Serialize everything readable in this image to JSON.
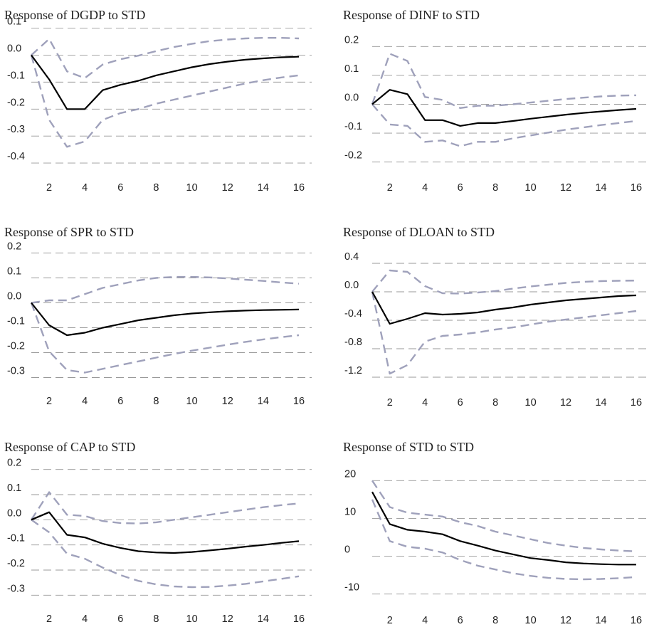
{
  "chart_data": [
    {
      "type": "line",
      "title": "Response of DGDP to STD",
      "xlabel": "",
      "ylabel": "",
      "x": [
        1,
        2,
        3,
        4,
        5,
        6,
        7,
        8,
        9,
        10,
        11,
        12,
        13,
        14,
        15,
        16
      ],
      "xticks": [
        "2",
        "4",
        "6",
        "8",
        "10",
        "12",
        "14",
        "16"
      ],
      "yticks": [
        "0.1",
        "0.0",
        "-0.1",
        "-0.2",
        "-0.3",
        "-0.4"
      ],
      "ylim": [
        -0.45,
        0.12
      ],
      "grid": true,
      "series": [
        {
          "role": "response",
          "values": [
            0.0,
            -0.09,
            -0.2,
            -0.2,
            -0.13,
            -0.11,
            -0.095,
            -0.075,
            -0.06,
            -0.045,
            -0.033,
            -0.024,
            -0.017,
            -0.012,
            -0.008,
            -0.006
          ]
        },
        {
          "role": "upper band",
          "values": [
            0.0,
            0.06,
            -0.06,
            -0.085,
            -0.035,
            -0.015,
            -0.002,
            0.015,
            0.03,
            0.042,
            0.052,
            0.058,
            0.062,
            0.064,
            0.064,
            0.062
          ]
        },
        {
          "role": "lower band",
          "values": [
            0.0,
            -0.24,
            -0.34,
            -0.32,
            -0.24,
            -0.215,
            -0.2,
            -0.18,
            -0.165,
            -0.15,
            -0.135,
            -0.12,
            -0.105,
            -0.093,
            -0.083,
            -0.075
          ]
        }
      ],
      "colors": {
        "response": "#000000",
        "band": "#9fa1bb"
      }
    },
    {
      "type": "line",
      "title": "Response of DINF to STD",
      "xlabel": "",
      "ylabel": "",
      "x": [
        1,
        2,
        3,
        4,
        5,
        6,
        7,
        8,
        9,
        10,
        11,
        12,
        13,
        14,
        15,
        16
      ],
      "xticks": [
        "2",
        "4",
        "6",
        "8",
        "10",
        "12",
        "14",
        "16"
      ],
      "yticks": [
        "0.2",
        "0.1",
        "0.0",
        "-0.1",
        "-0.2"
      ],
      "ylim": [
        -0.25,
        0.25
      ],
      "grid": true,
      "series": [
        {
          "role": "response",
          "values": [
            0.0,
            0.05,
            0.035,
            -0.055,
            -0.055,
            -0.075,
            -0.065,
            -0.065,
            -0.058,
            -0.05,
            -0.043,
            -0.036,
            -0.03,
            -0.025,
            -0.02,
            -0.016
          ]
        },
        {
          "role": "upper band",
          "values": [
            0.0,
            0.175,
            0.15,
            0.025,
            0.015,
            -0.013,
            -0.005,
            -0.005,
            0.0,
            0.006,
            0.012,
            0.018,
            0.023,
            0.027,
            0.03,
            0.031
          ]
        },
        {
          "role": "lower band",
          "values": [
            0.0,
            -0.07,
            -0.075,
            -0.13,
            -0.125,
            -0.145,
            -0.13,
            -0.13,
            -0.118,
            -0.108,
            -0.098,
            -0.088,
            -0.08,
            -0.072,
            -0.065,
            -0.058
          ]
        }
      ],
      "colors": {
        "response": "#000000",
        "band": "#9fa1bb"
      }
    },
    {
      "type": "line",
      "title": "Response of SPR to STD",
      "xlabel": "",
      "ylabel": "",
      "x": [
        1,
        2,
        3,
        4,
        5,
        6,
        7,
        8,
        9,
        10,
        11,
        12,
        13,
        14,
        15,
        16
      ],
      "xticks": [
        "2",
        "4",
        "6",
        "8",
        "10",
        "12",
        "14",
        "16"
      ],
      "yticks": [
        "0.2",
        "0.1",
        "0.0",
        "-0.1",
        "-0.2",
        "-0.3"
      ],
      "ylim": [
        -0.35,
        0.25
      ],
      "grid": true,
      "series": [
        {
          "role": "response",
          "values": [
            0.0,
            -0.09,
            -0.13,
            -0.12,
            -0.1,
            -0.085,
            -0.07,
            -0.06,
            -0.05,
            -0.043,
            -0.038,
            -0.034,
            -0.031,
            -0.029,
            -0.028,
            -0.027
          ]
        },
        {
          "role": "upper band",
          "values": [
            0.0,
            0.01,
            0.01,
            0.035,
            0.06,
            0.075,
            0.09,
            0.1,
            0.104,
            0.104,
            0.102,
            0.098,
            0.093,
            0.088,
            0.082,
            0.077
          ]
        },
        {
          "role": "lower band",
          "values": [
            0.0,
            -0.195,
            -0.27,
            -0.28,
            -0.265,
            -0.25,
            -0.235,
            -0.22,
            -0.205,
            -0.192,
            -0.18,
            -0.168,
            -0.157,
            -0.147,
            -0.138,
            -0.13
          ]
        }
      ],
      "colors": {
        "response": "#000000",
        "band": "#9fa1bb"
      }
    },
    {
      "type": "line",
      "title": "Response of DLOAN to STD",
      "xlabel": "",
      "ylabel": "",
      "x": [
        1,
        2,
        3,
        4,
        5,
        6,
        7,
        8,
        9,
        10,
        11,
        12,
        13,
        14,
        15,
        16
      ],
      "xticks": [
        "2",
        "4",
        "6",
        "8",
        "10",
        "12",
        "14",
        "16"
      ],
      "yticks": [
        "0.4",
        "0.0",
        "-0.4",
        "-0.8",
        "-1.2"
      ],
      "ylim": [
        -1.4,
        0.6
      ],
      "grid": true,
      "series": [
        {
          "role": "response",
          "values": [
            0.0,
            -0.45,
            -0.38,
            -0.3,
            -0.32,
            -0.31,
            -0.29,
            -0.25,
            -0.22,
            -0.18,
            -0.15,
            -0.12,
            -0.1,
            -0.08,
            -0.06,
            -0.05
          ]
        },
        {
          "role": "upper band",
          "values": [
            0.0,
            0.3,
            0.28,
            0.08,
            -0.02,
            -0.025,
            -0.01,
            0.01,
            0.045,
            0.075,
            0.1,
            0.125,
            0.14,
            0.15,
            0.155,
            0.158
          ]
        },
        {
          "role": "lower band",
          "values": [
            0.0,
            -1.15,
            -1.03,
            -0.7,
            -0.62,
            -0.6,
            -0.57,
            -0.53,
            -0.5,
            -0.46,
            -0.42,
            -0.39,
            -0.36,
            -0.33,
            -0.3,
            -0.27
          ]
        }
      ],
      "colors": {
        "response": "#000000",
        "band": "#9fa1bb"
      }
    },
    {
      "type": "line",
      "title": "Response of CAP to STD",
      "xlabel": "",
      "ylabel": "",
      "x": [
        1,
        2,
        3,
        4,
        5,
        6,
        7,
        8,
        9,
        10,
        11,
        12,
        13,
        14,
        15,
        16
      ],
      "xticks": [
        "2",
        "4",
        "6",
        "8",
        "10",
        "12",
        "14",
        "16"
      ],
      "yticks": [
        "0.2",
        "0.1",
        "0.0",
        "-0.1",
        "-0.2",
        "-0.3"
      ],
      "ylim": [
        -0.35,
        0.25
      ],
      "grid": true,
      "series": [
        {
          "role": "response",
          "values": [
            0.0,
            0.03,
            -0.06,
            -0.07,
            -0.095,
            -0.112,
            -0.125,
            -0.13,
            -0.132,
            -0.128,
            -0.122,
            -0.115,
            -0.107,
            -0.1,
            -0.092,
            -0.085
          ]
        },
        {
          "role": "upper band",
          "values": [
            0.0,
            0.11,
            0.02,
            0.015,
            -0.005,
            -0.013,
            -0.015,
            -0.01,
            0.0,
            0.01,
            0.02,
            0.03,
            0.04,
            0.05,
            0.058,
            0.065
          ]
        },
        {
          "role": "lower band",
          "values": [
            0.0,
            -0.05,
            -0.135,
            -0.155,
            -0.19,
            -0.22,
            -0.243,
            -0.257,
            -0.265,
            -0.268,
            -0.267,
            -0.262,
            -0.255,
            -0.245,
            -0.235,
            -0.225
          ]
        }
      ],
      "colors": {
        "response": "#000000",
        "band": "#9fa1bb"
      }
    },
    {
      "type": "line",
      "title": "Response of STD to STD",
      "xlabel": "",
      "ylabel": "",
      "x": [
        1,
        2,
        3,
        4,
        5,
        6,
        7,
        8,
        9,
        10,
        11,
        12,
        13,
        14,
        15,
        16
      ],
      "xticks": [
        "2",
        "4",
        "6",
        "8",
        "10",
        "12",
        "14",
        "16"
      ],
      "yticks": [
        "20",
        "10",
        "0",
        "-10"
      ],
      "ylim": [
        -14,
        24
      ],
      "grid": true,
      "series": [
        {
          "role": "response",
          "values": [
            17,
            8.5,
            7,
            6.5,
            5.8,
            4,
            2.8,
            1.5,
            0.5,
            -0.5,
            -1,
            -1.6,
            -1.9,
            -2.1,
            -2.2,
            -2.2
          ]
        },
        {
          "role": "upper band",
          "values": [
            20,
            13,
            11.5,
            11,
            10.5,
            9,
            8,
            6.5,
            5.5,
            4.5,
            3.5,
            2.8,
            2.2,
            1.8,
            1.5,
            1.3
          ]
        },
        {
          "role": "lower band",
          "values": [
            15,
            4,
            2.5,
            2,
            1,
            -1,
            -2.5,
            -3.5,
            -4.5,
            -5.2,
            -5.7,
            -6,
            -6.1,
            -6,
            -5.8,
            -5.5
          ]
        }
      ],
      "colors": {
        "response": "#000000",
        "band": "#9fa1bb"
      }
    }
  ]
}
